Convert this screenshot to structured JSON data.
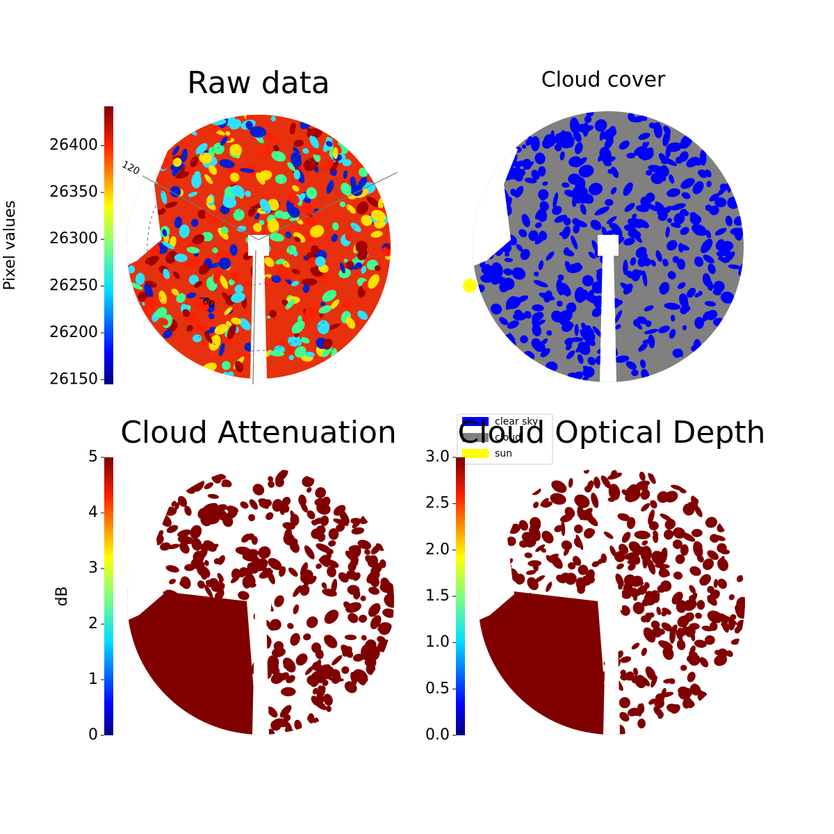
{
  "chart_data": [
    {
      "type": "image",
      "title": "Raw data",
      "ylabel": "Pixel values",
      "ylim": [
        26145,
        26442
      ],
      "yticks": [
        26150,
        26200,
        26250,
        26300,
        26350,
        26400
      ],
      "annotations": [
        "120",
        "60"
      ]
    },
    {
      "type": "image",
      "title": "Cloud cover",
      "legend": [
        {
          "name": "clear sky",
          "color": "#0000ff"
        },
        {
          "name": "cloud",
          "color": "#808080"
        },
        {
          "name": "sun",
          "color": "#ffff00"
        }
      ]
    },
    {
      "type": "image",
      "title": "Cloud Attenuation",
      "ylabel": "dB",
      "color": "#800000",
      "ylim": [
        0,
        5
      ],
      "yticks": [
        0,
        1,
        2,
        3,
        4,
        5
      ]
    },
    {
      "type": "image",
      "title": "Cloud Optical Depth",
      "color": "#800000",
      "ylim": [
        0,
        3
      ],
      "yticks": [
        {
          "value": 0,
          "label": "0.0"
        },
        {
          "value": 0.5,
          "label": "0.5"
        },
        {
          "value": 1,
          "label": "1.0"
        },
        {
          "value": 1.5,
          "label": "1.5"
        },
        {
          "value": 2,
          "label": "2.0"
        },
        {
          "value": 2.5,
          "label": "2.5"
        },
        {
          "value": 3,
          "label": "3.0"
        }
      ]
    }
  ]
}
